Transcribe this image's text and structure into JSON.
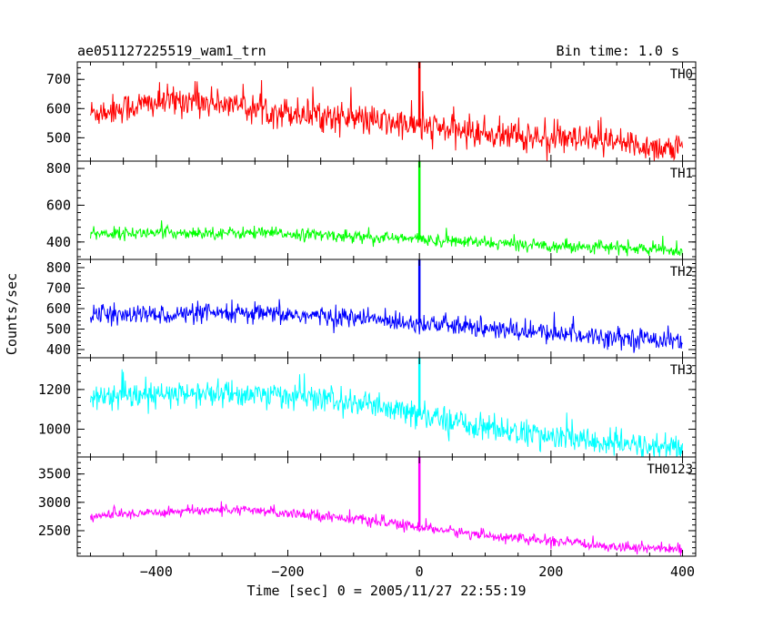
{
  "chart_data": {
    "type": "line",
    "title": "ae051127225519_wam1_trn",
    "subtitle": "Bin time: 1.0 s",
    "xlabel": "Time [sec] 0 = 2005/11/27 22:55:19",
    "ylabel": "Counts/sec",
    "xlim": [
      -520,
      420
    ],
    "xticks": [
      -400,
      -200,
      0,
      200,
      400
    ],
    "grid": false,
    "legend": "none",
    "panels": [
      {
        "name": "TH0",
        "color": "#ff0000",
        "ylim": [
          420,
          760
        ],
        "yticks": [
          500,
          600,
          700
        ],
        "trend": {
          "x": [
            -500,
            -400,
            -350,
            -250,
            -100,
            0,
            100,
            200,
            300,
            400
          ],
          "y": [
            585,
            620,
            630,
            600,
            565,
            540,
            515,
            495,
            480,
            460
          ]
        },
        "noise": 35,
        "spike": {
          "x": 0,
          "y": 760
        }
      },
      {
        "name": "TH1",
        "color": "#00ff00",
        "ylim": [
          305,
          840
        ],
        "yticks": [
          400,
          600,
          800
        ],
        "trend": {
          "x": [
            -500,
            -400,
            -300,
            -200,
            -100,
            0,
            100,
            200,
            300,
            400
          ],
          "y": [
            445,
            450,
            450,
            445,
            430,
            415,
            395,
            380,
            370,
            350
          ]
        },
        "noise": 22,
        "spike": {
          "x": 0,
          "y": 840
        }
      },
      {
        "name": "TH2",
        "color": "#0000ff",
        "ylim": [
          360,
          840
        ],
        "yticks": [
          400,
          500,
          600,
          700,
          800
        ],
        "trend": {
          "x": [
            -500,
            -400,
            -300,
            -200,
            -100,
            0,
            100,
            200,
            300,
            400
          ],
          "y": [
            565,
            570,
            575,
            570,
            555,
            530,
            500,
            480,
            460,
            445
          ]
        },
        "noise": 32,
        "spike": {
          "x": 0,
          "y": 840
        }
      },
      {
        "name": "TH3",
        "color": "#00ffff",
        "ylim": [
          860,
          1360
        ],
        "yticks": [
          1000,
          1200
        ],
        "trend": {
          "x": [
            -500,
            -400,
            -300,
            -200,
            -100,
            0,
            100,
            200,
            300,
            400
          ],
          "y": [
            1150,
            1170,
            1180,
            1170,
            1130,
            1070,
            1010,
            960,
            925,
            900
          ]
        },
        "noise": 45,
        "spike": {
          "x": 0,
          "y": 1360
        }
      },
      {
        "name": "TH0123",
        "color": "#ff00ff",
        "ylim": [
          2050,
          3800
        ],
        "yticks": [
          2500,
          3000,
          3500
        ],
        "trend": {
          "x": [
            -500,
            -400,
            -300,
            -200,
            -100,
            0,
            100,
            200,
            300,
            400
          ],
          "y": [
            2750,
            2830,
            2870,
            2820,
            2710,
            2560,
            2420,
            2310,
            2220,
            2170
          ]
        },
        "noise": 60,
        "spike": {
          "x": 0,
          "y": 3800
        }
      }
    ]
  }
}
